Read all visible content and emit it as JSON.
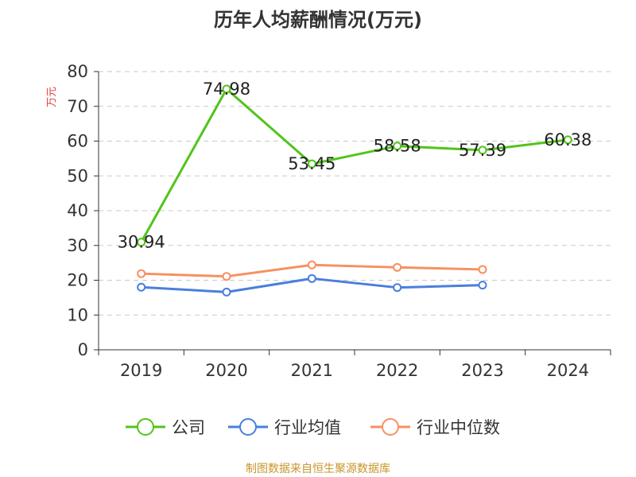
{
  "chart_data": {
    "type": "line",
    "title": "历年人均薪酬情况(万元)",
    "ylabel": "万元",
    "xlabel": "",
    "categories": [
      "2019",
      "2020",
      "2021",
      "2022",
      "2023",
      "2024"
    ],
    "ylim": [
      0,
      80
    ],
    "yticks": [
      0,
      10,
      20,
      30,
      40,
      50,
      60,
      70,
      80
    ],
    "grid": true,
    "legend_position": "bottom",
    "series": [
      {
        "name": "公司",
        "color": "#52c41a",
        "values": [
          30.94,
          74.98,
          53.45,
          58.58,
          57.39,
          60.38
        ],
        "labels": [
          "30.94",
          "74.98",
          "53.45",
          "58.58",
          "57.39",
          "60.38"
        ]
      },
      {
        "name": "行业均值",
        "color": "#4a7fdc",
        "values": [
          18.0,
          16.6,
          20.5,
          17.9,
          18.6,
          null
        ]
      },
      {
        "name": "行业中位数",
        "color": "#f79060",
        "values": [
          21.9,
          21.1,
          24.4,
          23.7,
          23.1,
          null
        ]
      }
    ]
  },
  "footer": {
    "source": "制图数据来自恒生聚源数据库"
  }
}
